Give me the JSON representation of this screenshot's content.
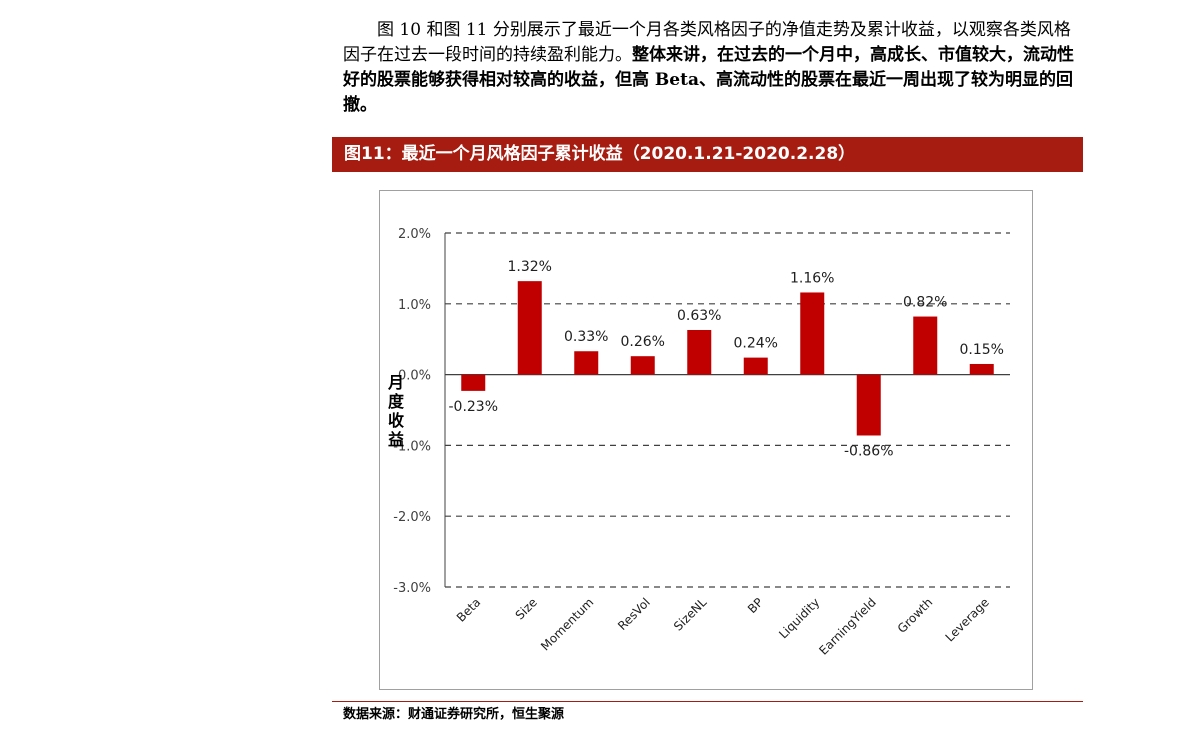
{
  "paragraph": {
    "normal": "图 10 和图 11 分别展示了最近一个月各类风格因子的净值走势及累计收益，以观察各类风格因子在过去一段时间的持续盈利能力。",
    "bold": "整体来讲，在过去的一个月中，高成长、市值较大，流动性好的股票能够获得相对较高的收益，但高 Beta、高流动性的股票在最近一周出现了较为明显的回撤。"
  },
  "figure": {
    "title": "图11：最近一个月风格因子累计收益（2020.1.21-2020.2.28）",
    "source": "数据来源：财通证券研究所，恒生聚源"
  },
  "chart_data": {
    "type": "bar",
    "categories": [
      "Beta",
      "Size",
      "Momentum",
      "ResVol",
      "SizeNL",
      "BP",
      "Liquidity",
      "EarningYield",
      "Growth",
      "Leverage"
    ],
    "values": [
      -0.23,
      1.32,
      0.33,
      0.26,
      0.63,
      0.24,
      1.16,
      -0.86,
      0.82,
      0.15
    ],
    "data_labels": [
      "-0.23%",
      "1.32%",
      "0.33%",
      "0.26%",
      "0.63%",
      "0.24%",
      "1.16%",
      "-0.86%",
      "0.82%",
      "0.15%"
    ],
    "ylabel": "月度收益",
    "ylim": [
      -3.0,
      2.0
    ],
    "yticks": [
      2.0,
      1.0,
      0.0,
      -1.0,
      -2.0,
      -3.0
    ],
    "ytick_labels": [
      "2.0%",
      "1.0%",
      "0.0%",
      "-1.0%",
      "-2.0%",
      "-3.0%"
    ],
    "bar_color": "#c00000",
    "grid": "dashed"
  }
}
